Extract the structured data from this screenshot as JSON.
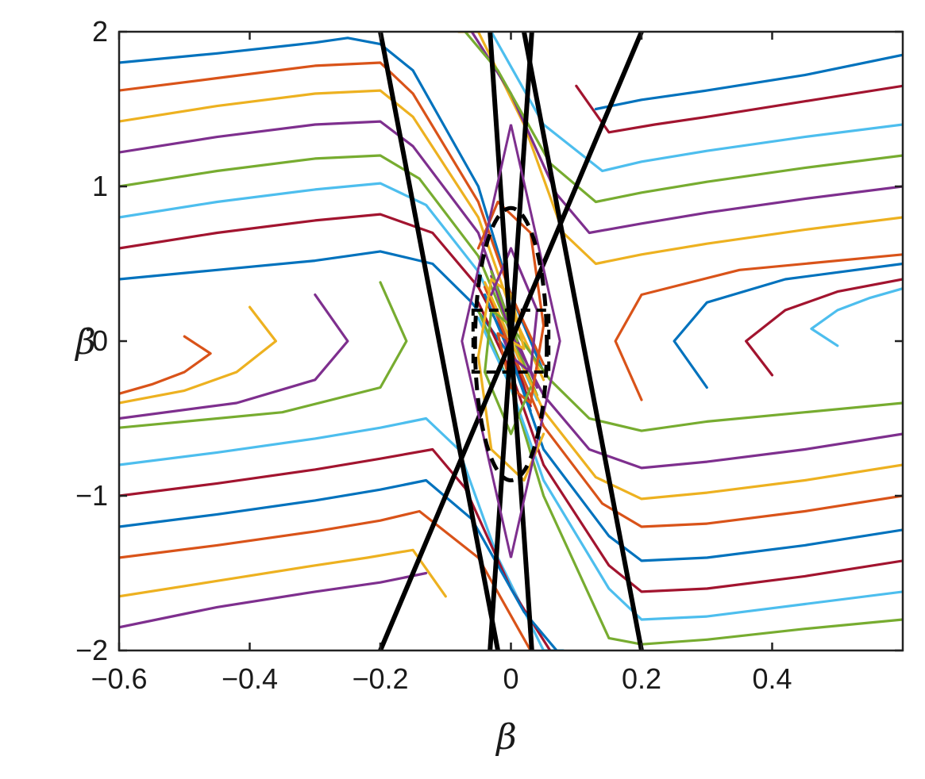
{
  "chart_data": {
    "type": "line",
    "xlabel": "β",
    "ylabel": "β̇",
    "xlim": [
      -0.6,
      0.6
    ],
    "ylim": [
      -2,
      2
    ],
    "grid": false,
    "x_ticks": [
      {
        "value": -0.6,
        "label": "−0.6"
      },
      {
        "value": -0.4,
        "label": "−0.4"
      },
      {
        "value": -0.2,
        "label": "−0.2"
      },
      {
        "value": 0,
        "label": "0"
      },
      {
        "value": 0.2,
        "label": "0.2"
      },
      {
        "value": 0.4,
        "label": "0.4"
      }
    ],
    "y_ticks": [
      {
        "value": -2,
        "label": "−2"
      },
      {
        "value": -1,
        "label": "−1"
      },
      {
        "value": 0,
        "label": "0"
      },
      {
        "value": 1,
        "label": "1"
      },
      {
        "value": 2,
        "label": "2"
      }
    ],
    "palette": [
      "#0072BD",
      "#D95319",
      "#EDB120",
      "#7E2F8E",
      "#77AC30",
      "#4DBEEE",
      "#A2142F"
    ],
    "boundary_lines": [
      {
        "x": [
          -0.2,
          -0.02
        ],
        "y": [
          2,
          -2
        ]
      },
      {
        "x": [
          0.02,
          0.2
        ],
        "y": [
          2,
          -2
        ]
      },
      {
        "x": [
          -0.032,
          0.032
        ],
        "y": [
          2,
          -2
        ]
      },
      {
        "x": [
          -0.032,
          0.032
        ],
        "y": [
          -2,
          2
        ]
      },
      {
        "x": [
          -0.2,
          0.2
        ],
        "y": [
          -2,
          2
        ]
      }
    ],
    "ellipse": {
      "cx": 0,
      "cy": -0.02,
      "rx": 0.055,
      "ry": 0.88,
      "style": "dashed"
    },
    "rectangle": {
      "x": [
        -0.058,
        0.058
      ],
      "y": [
        -0.2,
        0.2
      ],
      "style": "dashed"
    },
    "diamond": {
      "x": [
        0,
        0.075,
        0,
        -0.075
      ],
      "y": [
        1.4,
        0,
        -1.4,
        0
      ]
    },
    "trajectories": [
      {
        "x": [
          -0.6,
          -0.45,
          -0.3,
          -0.25,
          -0.2,
          -0.15,
          -0.05,
          0.0,
          0.05
        ],
        "y": [
          1.8,
          1.86,
          1.93,
          1.96,
          1.92,
          1.75,
          1.0,
          0.3,
          -0.2
        ]
      },
      {
        "x": [
          -0.6,
          -0.45,
          -0.3,
          -0.2,
          -0.15,
          -0.05,
          0.0,
          0.05
        ],
        "y": [
          1.62,
          1.7,
          1.78,
          1.8,
          1.6,
          0.9,
          0.3,
          -0.15
        ]
      },
      {
        "x": [
          -0.6,
          -0.45,
          -0.3,
          -0.2,
          -0.15,
          -0.05,
          0.0,
          0.05
        ],
        "y": [
          1.42,
          1.52,
          1.6,
          1.62,
          1.45,
          0.8,
          0.2,
          -0.25
        ]
      },
      {
        "x": [
          -0.6,
          -0.45,
          -0.3,
          -0.2,
          -0.15,
          -0.05,
          0.0,
          0.04
        ],
        "y": [
          1.22,
          1.32,
          1.4,
          1.42,
          1.26,
          0.7,
          0.1,
          -0.3
        ]
      },
      {
        "x": [
          -0.6,
          -0.45,
          -0.3,
          -0.2,
          -0.14,
          -0.05,
          0.0,
          0.04
        ],
        "y": [
          1.0,
          1.1,
          1.18,
          1.2,
          1.05,
          0.55,
          0.05,
          -0.35
        ]
      },
      {
        "x": [
          -0.6,
          -0.45,
          -0.3,
          -0.2,
          -0.13,
          -0.05,
          0.0,
          0.04
        ],
        "y": [
          0.8,
          0.9,
          0.98,
          1.02,
          0.88,
          0.45,
          0.0,
          -0.38
        ]
      },
      {
        "x": [
          -0.6,
          -0.45,
          -0.3,
          -0.2,
          -0.12,
          -0.05,
          0.0,
          0.03
        ],
        "y": [
          0.6,
          0.7,
          0.78,
          0.82,
          0.7,
          0.35,
          -0.05,
          -0.42
        ]
      },
      {
        "x": [
          -0.6,
          -0.45,
          -0.3,
          -0.2,
          -0.12,
          -0.06,
          0.0,
          0.03
        ],
        "y": [
          0.4,
          0.46,
          0.52,
          0.58,
          0.5,
          0.25,
          -0.1,
          -0.45
        ]
      },
      {
        "x": [
          -0.5,
          -0.46,
          -0.5,
          -0.55,
          -0.6
        ],
        "y": [
          0.03,
          -0.08,
          -0.2,
          -0.28,
          -0.34
        ]
      },
      {
        "x": [
          -0.4,
          -0.36,
          -0.42,
          -0.5,
          -0.6
        ],
        "y": [
          0.22,
          0.0,
          -0.2,
          -0.32,
          -0.4
        ]
      },
      {
        "x": [
          -0.3,
          -0.25,
          -0.3,
          -0.42,
          -0.6
        ],
        "y": [
          0.3,
          0.0,
          -0.25,
          -0.4,
          -0.5
        ]
      },
      {
        "x": [
          -0.2,
          -0.16,
          -0.2,
          -0.35,
          -0.6
        ],
        "y": [
          0.38,
          0.0,
          -0.3,
          -0.46,
          -0.56
        ]
      },
      {
        "x": [
          -0.6,
          -0.45,
          -0.3,
          -0.2,
          -0.13,
          -0.08,
          -0.02,
          0.05,
          0.08
        ],
        "y": [
          -0.8,
          -0.72,
          -0.63,
          -0.56,
          -0.5,
          -0.7,
          -1.4,
          -2.0,
          -2.0
        ]
      },
      {
        "x": [
          -0.6,
          -0.45,
          -0.3,
          -0.2,
          -0.12,
          -0.07,
          0.0,
          0.06
        ],
        "y": [
          -1.0,
          -0.92,
          -0.83,
          -0.76,
          -0.7,
          -0.95,
          -1.6,
          -2.0
        ]
      },
      {
        "x": [
          -0.6,
          -0.45,
          -0.3,
          -0.2,
          -0.13,
          -0.06,
          0.02,
          0.07
        ],
        "y": [
          -1.2,
          -1.12,
          -1.03,
          -0.96,
          -0.9,
          -1.15,
          -1.75,
          -2.0
        ]
      },
      {
        "x": [
          -0.6,
          -0.45,
          -0.3,
          -0.2,
          -0.14,
          -0.05,
          0.03
        ],
        "y": [
          -1.4,
          -1.32,
          -1.23,
          -1.16,
          -1.1,
          -1.4,
          -2.0
        ]
      },
      {
        "x": [
          -0.6,
          -0.45,
          -0.3,
          -0.22,
          -0.15,
          -0.1
        ],
        "y": [
          -1.65,
          -1.55,
          -1.45,
          -1.4,
          -1.35,
          -1.65
        ]
      },
      {
        "x": [
          -0.6,
          -0.45,
          -0.3,
          -0.2,
          -0.13
        ],
        "y": [
          -1.85,
          -1.72,
          -1.62,
          -1.56,
          -1.5
        ]
      },
      {
        "x": [
          0.6,
          0.45,
          0.3,
          0.2,
          0.15,
          0.05,
          0.0,
          -0.05
        ],
        "y": [
          -1.8,
          -1.86,
          -1.93,
          -1.96,
          -1.92,
          -1.0,
          -0.3,
          0.2
        ]
      },
      {
        "x": [
          0.6,
          0.45,
          0.3,
          0.2,
          0.15,
          0.05,
          0.0,
          -0.05
        ],
        "y": [
          -1.62,
          -1.7,
          -1.78,
          -1.8,
          -1.6,
          -0.9,
          -0.3,
          0.15
        ]
      },
      {
        "x": [
          0.6,
          0.45,
          0.3,
          0.2,
          0.15,
          0.05,
          0.0,
          -0.05
        ],
        "y": [
          -1.42,
          -1.52,
          -1.6,
          -1.62,
          -1.45,
          -0.8,
          -0.2,
          0.25
        ]
      },
      {
        "x": [
          0.6,
          0.45,
          0.3,
          0.2,
          0.15,
          0.05,
          0.0,
          -0.04
        ],
        "y": [
          -1.22,
          -1.32,
          -1.4,
          -1.42,
          -1.26,
          -0.7,
          -0.1,
          0.3
        ]
      },
      {
        "x": [
          0.6,
          0.45,
          0.3,
          0.2,
          0.14,
          0.05,
          0.0,
          -0.04
        ],
        "y": [
          -1.0,
          -1.1,
          -1.18,
          -1.2,
          -1.05,
          -0.55,
          -0.05,
          0.35
        ]
      },
      {
        "x": [
          0.6,
          0.45,
          0.3,
          0.2,
          0.13,
          0.05,
          0.0,
          -0.04
        ],
        "y": [
          -0.8,
          -0.9,
          -0.98,
          -1.02,
          -0.88,
          -0.45,
          0.0,
          0.38
        ]
      },
      {
        "x": [
          0.6,
          0.45,
          0.3,
          0.2,
          0.12,
          0.05,
          0.0,
          -0.03
        ],
        "y": [
          -0.6,
          -0.7,
          -0.78,
          -0.82,
          -0.7,
          -0.35,
          0.05,
          0.42
        ]
      },
      {
        "x": [
          0.6,
          0.45,
          0.3,
          0.2,
          0.12,
          0.06,
          0.0,
          -0.03
        ],
        "y": [
          -0.4,
          -0.46,
          -0.52,
          -0.58,
          -0.5,
          -0.25,
          0.1,
          0.45
        ]
      },
      {
        "x": [
          0.5,
          0.46,
          0.5,
          0.55,
          0.6
        ],
        "y": [
          -0.03,
          0.08,
          0.2,
          0.28,
          0.34
        ]
      },
      {
        "x": [
          0.4,
          0.36,
          0.42,
          0.5,
          0.6
        ],
        "y": [
          -0.22,
          0.0,
          0.2,
          0.32,
          0.4
        ]
      },
      {
        "x": [
          0.3,
          0.25,
          0.3,
          0.42,
          0.6
        ],
        "y": [
          -0.3,
          0.0,
          0.25,
          0.4,
          0.5
        ]
      },
      {
        "x": [
          0.2,
          0.16,
          0.2,
          0.35,
          0.6
        ],
        "y": [
          -0.38,
          0.0,
          0.3,
          0.46,
          0.56
        ]
      },
      {
        "x": [
          0.6,
          0.45,
          0.3,
          0.2,
          0.13,
          0.08,
          0.02,
          -0.05,
          -0.08
        ],
        "y": [
          0.8,
          0.72,
          0.63,
          0.56,
          0.5,
          0.7,
          1.4,
          2.0,
          2.0
        ]
      },
      {
        "x": [
          0.6,
          0.45,
          0.3,
          0.2,
          0.12,
          0.07,
          0.0,
          -0.06
        ],
        "y": [
          1.0,
          0.92,
          0.83,
          0.76,
          0.7,
          0.95,
          1.6,
          2.0
        ]
      },
      {
        "x": [
          0.6,
          0.45,
          0.3,
          0.2,
          0.13,
          0.06,
          -0.02,
          -0.07
        ],
        "y": [
          1.2,
          1.12,
          1.03,
          0.96,
          0.9,
          1.15,
          1.75,
          2.0
        ]
      },
      {
        "x": [
          0.6,
          0.45,
          0.3,
          0.2,
          0.14,
          0.05,
          -0.03
        ],
        "y": [
          1.4,
          1.32,
          1.23,
          1.16,
          1.1,
          1.4,
          2.0
        ]
      },
      {
        "x": [
          0.6,
          0.45,
          0.3,
          0.22,
          0.15,
          0.1
        ],
        "y": [
          1.65,
          1.55,
          1.45,
          1.4,
          1.35,
          1.65
        ]
      },
      {
        "x": [
          0.6,
          0.45,
          0.3,
          0.2,
          0.13
        ],
        "y": [
          1.85,
          1.72,
          1.62,
          1.56,
          1.5
        ]
      },
      {
        "x": [
          -0.05,
          -0.02,
          0.03,
          0.05,
          0.03,
          0.0,
          -0.02,
          0.0
        ],
        "y": [
          0.6,
          0.9,
          0.7,
          0.1,
          -0.4,
          -0.3,
          0.05,
          0.0
        ]
      },
      {
        "x": [
          0.05,
          0.02,
          -0.03,
          -0.05,
          -0.03,
          0.0,
          0.02,
          0.0
        ],
        "y": [
          -0.6,
          -0.9,
          -0.7,
          -0.1,
          0.4,
          0.3,
          -0.05,
          0.0
        ]
      },
      {
        "x": [
          -0.03,
          0.0,
          0.04,
          0.03,
          0.0,
          -0.01
        ],
        "y": [
          0.3,
          0.6,
          0.2,
          -0.2,
          -0.1,
          0.0
        ]
      },
      {
        "x": [
          0.03,
          0.0,
          -0.04,
          -0.03,
          0.0,
          0.01
        ],
        "y": [
          -0.3,
          -0.6,
          -0.2,
          0.2,
          0.1,
          0.0
        ]
      }
    ]
  }
}
